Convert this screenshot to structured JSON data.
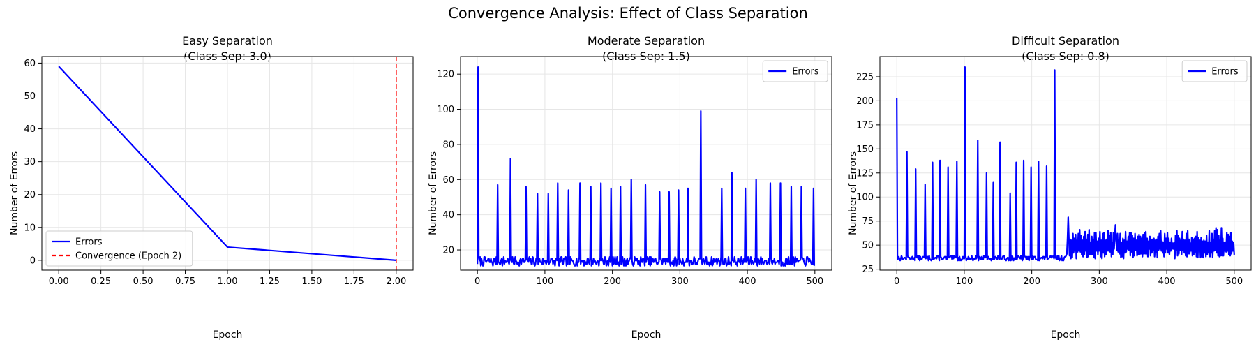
{
  "figure": {
    "suptitle": "Convergence Analysis: Effect of Class Separation"
  },
  "chart_data": [
    {
      "type": "line",
      "title_line1": "Easy Separation",
      "title_line2": "(Class Sep: 3.0)",
      "xlabel": "Epoch",
      "ylabel": "Number of Errors",
      "xlim": [
        -0.1,
        2.1
      ],
      "ylim": [
        -3,
        62
      ],
      "xticks": [
        0,
        0.25,
        0.5,
        0.75,
        1,
        1.25,
        1.5,
        1.75,
        2
      ],
      "xtick_labels": [
        "0.00",
        "0.25",
        "0.50",
        "0.75",
        "1.00",
        "1.25",
        "1.50",
        "1.75",
        "2.00"
      ],
      "yticks": [
        0,
        10,
        20,
        30,
        40,
        50,
        60
      ],
      "ytick_labels": [
        "0",
        "10",
        "20",
        "30",
        "40",
        "50",
        "60"
      ],
      "grid": true,
      "legend_position": "lower-left",
      "series": [
        {
          "name": "Errors",
          "color": "#0000ff",
          "style": "solid",
          "x": [
            0,
            1,
            2
          ],
          "y": [
            59,
            4,
            0
          ]
        }
      ],
      "vlines": [
        {
          "name": "Convergence (Epoch 2)",
          "x": 2,
          "color": "#ff0000",
          "style": "dashed"
        }
      ]
    },
    {
      "type": "line",
      "title_line1": "Moderate Separation",
      "title_line2": "(Class Sep: 1.5)",
      "xlabel": "Epoch",
      "ylabel": "Number of Errors",
      "xlim": [
        -25,
        525
      ],
      "ylim": [
        8.5,
        130
      ],
      "xticks": [
        0,
        100,
        200,
        300,
        400,
        500
      ],
      "xtick_labels": [
        "0",
        "100",
        "200",
        "300",
        "400",
        "500"
      ],
      "yticks": [
        20,
        40,
        60,
        80,
        100,
        120
      ],
      "ytick_labels": [
        "20",
        "40",
        "60",
        "80",
        "100",
        "120"
      ],
      "grid": true,
      "legend_position": "top-right",
      "series": [
        {
          "name": "Errors",
          "color": "#0000ff",
          "style": "solid",
          "baseline": [
            11,
            16
          ],
          "spikes": [
            {
              "x": 1,
              "y": 124
            },
            {
              "x": 30,
              "y": 57
            },
            {
              "x": 49,
              "y": 72
            },
            {
              "x": 72,
              "y": 56
            },
            {
              "x": 89,
              "y": 52
            },
            {
              "x": 105,
              "y": 52
            },
            {
              "x": 119,
              "y": 58
            },
            {
              "x": 135,
              "y": 54
            },
            {
              "x": 152,
              "y": 58
            },
            {
              "x": 168,
              "y": 56
            },
            {
              "x": 183,
              "y": 58
            },
            {
              "x": 198,
              "y": 55
            },
            {
              "x": 212,
              "y": 56
            },
            {
              "x": 228,
              "y": 60
            },
            {
              "x": 249,
              "y": 57
            },
            {
              "x": 270,
              "y": 53
            },
            {
              "x": 284,
              "y": 53
            },
            {
              "x": 298,
              "y": 54
            },
            {
              "x": 312,
              "y": 55
            },
            {
              "x": 331,
              "y": 99
            },
            {
              "x": 362,
              "y": 55
            },
            {
              "x": 377,
              "y": 64
            },
            {
              "x": 397,
              "y": 55
            },
            {
              "x": 413,
              "y": 60
            },
            {
              "x": 434,
              "y": 58
            },
            {
              "x": 449,
              "y": 58
            },
            {
              "x": 465,
              "y": 56
            },
            {
              "x": 480,
              "y": 56
            },
            {
              "x": 498,
              "y": 55
            }
          ],
          "last": {
            "x": 499,
            "y": 11
          }
        }
      ]
    },
    {
      "type": "line",
      "title_line1": "Difficult Separation",
      "title_line2": "(Class Sep: 0.8)",
      "xlabel": "Epoch",
      "ylabel": "Number of Errors",
      "xlim": [
        -25,
        525
      ],
      "ylim": [
        24,
        246
      ],
      "xticks": [
        0,
        100,
        200,
        300,
        400,
        500
      ],
      "xtick_labels": [
        "0",
        "100",
        "200",
        "300",
        "400",
        "500"
      ],
      "yticks": [
        25,
        50,
        75,
        100,
        125,
        150,
        175,
        200,
        225
      ],
      "ytick_labels": [
        "25",
        "50",
        "75",
        "100",
        "125",
        "150",
        "175",
        "200",
        "225"
      ],
      "grid": true,
      "legend_position": "top-right",
      "series": [
        {
          "name": "Errors",
          "color": "#0000ff",
          "style": "solid",
          "phase1_baseline": [
            34,
            39
          ],
          "phase1_end": 252,
          "phase2_range": [
            36,
            66
          ],
          "spikes": [
            {
              "x": 0,
              "y": 203
            },
            {
              "x": 15,
              "y": 147
            },
            {
              "x": 28,
              "y": 129
            },
            {
              "x": 42,
              "y": 113
            },
            {
              "x": 53,
              "y": 136
            },
            {
              "x": 64,
              "y": 138
            },
            {
              "x": 76,
              "y": 131
            },
            {
              "x": 89,
              "y": 137
            },
            {
              "x": 101,
              "y": 235
            },
            {
              "x": 120,
              "y": 159
            },
            {
              "x": 133,
              "y": 125
            },
            {
              "x": 143,
              "y": 115
            },
            {
              "x": 153,
              "y": 157
            },
            {
              "x": 168,
              "y": 104
            },
            {
              "x": 177,
              "y": 136
            },
            {
              "x": 188,
              "y": 138
            },
            {
              "x": 199,
              "y": 131
            },
            {
              "x": 210,
              "y": 137
            },
            {
              "x": 222,
              "y": 132
            },
            {
              "x": 234,
              "y": 232
            },
            {
              "x": 254,
              "y": 79
            },
            {
              "x": 324,
              "y": 71
            },
            {
              "x": 473,
              "y": 68
            },
            {
              "x": 481,
              "y": 68
            },
            {
              "x": 495,
              "y": 63
            }
          ],
          "last": {
            "x": 500,
            "y": 40
          }
        }
      ]
    }
  ]
}
